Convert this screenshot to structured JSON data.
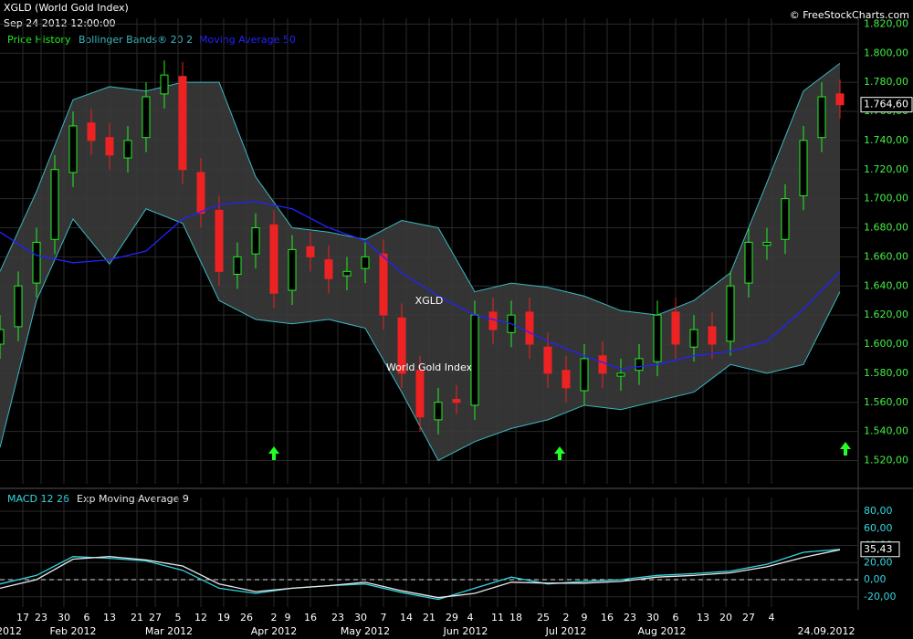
{
  "header": {
    "title": "XGLD (World Gold Index)",
    "date": "Sep 24 2012 12:00:00",
    "source": "© FreeStockCharts.com",
    "watermark": "XGLD",
    "watermark_sub": "World Gold Index"
  },
  "chart_data": [
    {
      "type": "candlestick",
      "name": "Price History",
      "color_up": "#22ee22",
      "color_down": "#ee2222",
      "x": [
        0,
        4,
        8,
        12,
        16,
        20,
        24,
        28,
        32,
        36,
        40,
        44,
        48,
        52,
        56,
        60,
        64,
        68,
        72,
        76,
        80,
        84,
        88,
        92,
        96,
        100,
        104,
        108,
        112,
        116,
        120,
        124,
        128,
        132,
        136,
        140,
        144,
        148,
        152,
        156,
        160,
        164,
        168,
        172,
        176,
        180,
        184
      ],
      "open": [
        1600,
        1612,
        1642,
        1672,
        1718,
        1752,
        1742,
        1728,
        1742,
        1772,
        1784,
        1718,
        1692,
        1648,
        1662,
        1682,
        1637,
        1667,
        1658,
        1647,
        1652,
        1662,
        1618,
        1582,
        1548,
        1562,
        1558,
        1622,
        1608,
        1622,
        1598,
        1582,
        1568,
        1592,
        1578,
        1582,
        1588,
        1622,
        1598,
        1612,
        1602,
        1642,
        1668,
        1672,
        1702,
        1742,
        1772
      ],
      "high": [
        1620,
        1650,
        1680,
        1730,
        1760,
        1762,
        1752,
        1750,
        1780,
        1795,
        1794,
        1728,
        1702,
        1670,
        1690,
        1692,
        1675,
        1677,
        1668,
        1660,
        1670,
        1672,
        1628,
        1592,
        1570,
        1572,
        1630,
        1632,
        1630,
        1632,
        1608,
        1592,
        1600,
        1602,
        1590,
        1600,
        1630,
        1632,
        1620,
        1622,
        1650,
        1680,
        1680,
        1710,
        1750,
        1780,
        1782
      ],
      "low": [
        1590,
        1602,
        1632,
        1662,
        1708,
        1730,
        1720,
        1718,
        1732,
        1762,
        1710,
        1680,
        1640,
        1638,
        1652,
        1625,
        1627,
        1650,
        1635,
        1637,
        1642,
        1610,
        1570,
        1540,
        1538,
        1552,
        1548,
        1600,
        1598,
        1590,
        1570,
        1560,
        1558,
        1570,
        1568,
        1572,
        1578,
        1590,
        1588,
        1590,
        1592,
        1632,
        1658,
        1662,
        1692,
        1732,
        1755
      ],
      "close": [
        1610,
        1640,
        1670,
        1720,
        1750,
        1740,
        1730,
        1740,
        1770,
        1785,
        1720,
        1690,
        1650,
        1660,
        1680,
        1635,
        1665,
        1660,
        1645,
        1650,
        1660,
        1620,
        1580,
        1550,
        1560,
        1560,
        1620,
        1610,
        1620,
        1600,
        1580,
        1570,
        1590,
        1580,
        1580,
        1590,
        1620,
        1600,
        1610,
        1600,
        1640,
        1670,
        1670,
        1700,
        1740,
        1770,
        1764.6
      ],
      "last_label": "1.764,60",
      "bands": {
        "name": "Bollinger Bands® 20 2",
        "color": "#3ab8c0",
        "x": [
          0,
          8,
          16,
          24,
          32,
          40,
          48,
          56,
          64,
          72,
          80,
          88,
          96,
          104,
          112,
          120,
          128,
          136,
          144,
          152,
          160,
          168,
          176,
          184
        ],
        "upper": [
          1650,
          1705,
          1768,
          1777,
          1774,
          1780,
          1780,
          1715,
          1680,
          1677,
          1672,
          1685,
          1680,
          1636,
          1642,
          1639,
          1633,
          1623,
          1620,
          1630,
          1649,
          1711,
          1774,
          1793
        ],
        "lower": [
          1529,
          1630,
          1686,
          1655,
          1693,
          1683,
          1630,
          1617,
          1614,
          1617,
          1611,
          1567,
          1520,
          1533,
          1542,
          1548,
          1558,
          1555,
          1561,
          1567,
          1586,
          1580,
          1586,
          1636
        ]
      },
      "ma": {
        "name": "Moving Average 50",
        "color": "#2222ff",
        "x": [
          0,
          8,
          16,
          24,
          32,
          40,
          48,
          56,
          64,
          72,
          80,
          88,
          96,
          104,
          112,
          120,
          128,
          136,
          144,
          152,
          160,
          168,
          176,
          184
        ],
        "values": [
          1677,
          1661,
          1656,
          1658,
          1664,
          1686,
          1696,
          1698,
          1693,
          1680,
          1671,
          1649,
          1633,
          1620,
          1614,
          1602,
          1592,
          1583,
          1586,
          1592,
          1595,
          1602,
          1624,
          1650
        ]
      },
      "xlim": [
        0,
        188
      ],
      "ylim": [
        1504,
        1824
      ],
      "yticks": [
        {
          "value": 1520,
          "label": "1.520,00"
        },
        {
          "value": 1540,
          "label": "1.540,00"
        },
        {
          "value": 1560,
          "label": "1.560,00"
        },
        {
          "value": 1580,
          "label": "1.580,00"
        },
        {
          "value": 1600,
          "label": "1.600,00"
        },
        {
          "value": 1620,
          "label": "1.620,00"
        },
        {
          "value": 1640,
          "label": "1.640,00"
        },
        {
          "value": 1660,
          "label": "1.660,00"
        },
        {
          "value": 1680,
          "label": "1.680,00"
        },
        {
          "value": 1700,
          "label": "1.700,00"
        },
        {
          "value": 1720,
          "label": "1.720,00"
        },
        {
          "value": 1740,
          "label": "1.740,00"
        },
        {
          "value": 1760,
          "label": "1.760,00"
        },
        {
          "value": 1780,
          "label": "1.780,00"
        },
        {
          "value": 1800,
          "label": "1.800,00"
        },
        {
          "value": 1820,
          "label": "1.820,00"
        }
      ],
      "xticks": [
        {
          "value": 5,
          "label": "17"
        },
        {
          "value": 9,
          "label": "23"
        },
        {
          "value": 14,
          "label": "30"
        },
        {
          "value": 19,
          "label": "6"
        },
        {
          "value": 24,
          "label": "13"
        },
        {
          "value": 30,
          "label": "21"
        },
        {
          "value": 34,
          "label": "27"
        },
        {
          "value": 39,
          "label": "5"
        },
        {
          "value": 44,
          "label": "12"
        },
        {
          "value": 49,
          "label": "19"
        },
        {
          "value": 54,
          "label": "26"
        },
        {
          "value": 60,
          "label": "2"
        },
        {
          "value": 63,
          "label": "9"
        },
        {
          "value": 68,
          "label": "16"
        },
        {
          "value": 74,
          "label": "23"
        },
        {
          "value": 79,
          "label": "30"
        },
        {
          "value": 84,
          "label": "7"
        },
        {
          "value": 89,
          "label": "14"
        },
        {
          "value": 94,
          "label": "21"
        },
        {
          "value": 99,
          "label": "29"
        },
        {
          "value": 103,
          "label": "4"
        },
        {
          "value": 109,
          "label": "11"
        },
        {
          "value": 113,
          "label": "18"
        },
        {
          "value": 119,
          "label": "25"
        },
        {
          "value": 124,
          "label": "2"
        },
        {
          "value": 128,
          "label": "9"
        },
        {
          "value": 133,
          "label": "16"
        },
        {
          "value": 138,
          "label": "23"
        },
        {
          "value": 143,
          "label": "30"
        },
        {
          "value": 148,
          "label": "6"
        },
        {
          "value": 154,
          "label": "13"
        },
        {
          "value": 159,
          "label": "20"
        },
        {
          "value": 164,
          "label": "27"
        },
        {
          "value": 169,
          "label": "4"
        }
      ],
      "month_ticks": [
        {
          "value": 2,
          "label": "2012"
        },
        {
          "value": 16,
          "label": "Feb 2012"
        },
        {
          "value": 37,
          "label": "Mar 2012"
        },
        {
          "value": 60,
          "label": "Apr 2012"
        },
        {
          "value": 80,
          "label": "May 2012"
        },
        {
          "value": 102,
          "label": "Jun 2012"
        },
        {
          "value": 124,
          "label": "Jul 2012"
        },
        {
          "value": 145,
          "label": "Aug 2012"
        },
        {
          "value": 181,
          "label": "24.09.2012"
        }
      ],
      "grid": true
    },
    {
      "type": "line",
      "title": "MACD 12 26",
      "x": [
        0,
        8,
        16,
        24,
        32,
        40,
        48,
        56,
        64,
        72,
        80,
        88,
        96,
        104,
        112,
        120,
        128,
        136,
        144,
        152,
        160,
        168,
        176,
        184
      ],
      "series": [
        {
          "name": "MACD 12 26",
          "color": "#33d6e0",
          "values": [
            -5,
            5,
            27,
            25,
            22,
            11,
            -10,
            -16,
            -10,
            -7,
            -5,
            -15,
            -23,
            -10,
            3,
            -5,
            -2,
            0,
            5,
            7,
            10,
            18,
            32,
            35.43
          ]
        },
        {
          "name": "Exp Moving Average 9",
          "color": "#e8e8e8",
          "values": [
            -10,
            0,
            24,
            27,
            23,
            16,
            -5,
            -14,
            -10,
            -7,
            -3,
            -13,
            -21,
            -16,
            -3,
            -4,
            -4,
            -2,
            3,
            5,
            8,
            15,
            26,
            35
          ]
        }
      ],
      "last_label": "35,43",
      "xlim": [
        0,
        188
      ],
      "ylim": [
        -32,
        96
      ],
      "yticks": [
        {
          "value": -20,
          "label": "-20,00"
        },
        {
          "value": 0,
          "label": "0,00"
        },
        {
          "value": 20,
          "label": "20,00"
        },
        {
          "value": 40,
          "label": "40,00"
        },
        {
          "value": 60,
          "label": "60,00"
        },
        {
          "value": 80,
          "label": "80,00"
        }
      ],
      "grid": true
    }
  ]
}
